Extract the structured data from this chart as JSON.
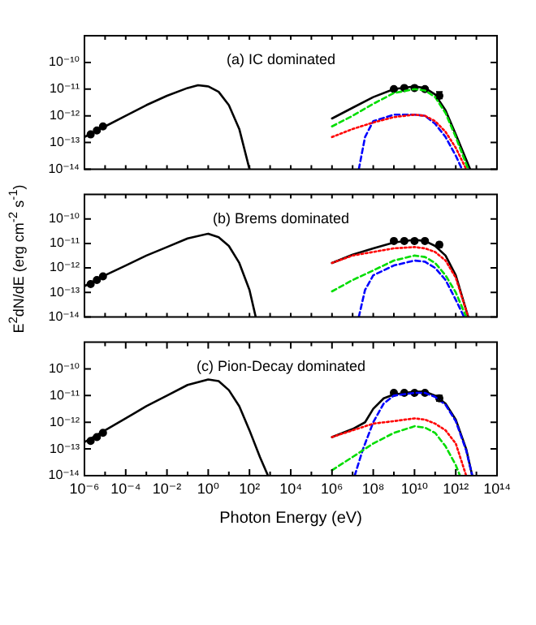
{
  "chart_data": [
    {
      "type": "line",
      "title": "(a) IC dominated",
      "log": "xy",
      "xlim": [
        1e-06,
        100000000000000.0
      ],
      "ylim": [
        1e-14,
        1e-09
      ],
      "tick_labels": "y",
      "xticks": [
        {
          "value": 1e-06,
          "label": null
        },
        {
          "value": 1e-05,
          "label": null
        },
        {
          "value": 0.0001,
          "label": null
        },
        {
          "value": 0.001,
          "label": null
        },
        {
          "value": 0.01,
          "label": null
        },
        {
          "value": 0.1,
          "label": null
        },
        {
          "value": 1,
          "label": null
        },
        {
          "value": 10,
          "label": null
        },
        {
          "value": 100,
          "label": null
        },
        {
          "value": 1000.0,
          "label": null
        },
        {
          "value": 10000.0,
          "label": null
        },
        {
          "value": 100000.0,
          "label": null
        },
        {
          "value": 1000000.0,
          "label": null
        },
        {
          "value": 10000000.0,
          "label": null
        },
        {
          "value": 100000000.0,
          "label": null
        },
        {
          "value": 1000000000.0,
          "label": null
        },
        {
          "value": 10000000000.0,
          "label": null
        },
        {
          "value": 100000000000.0,
          "label": null
        },
        {
          "value": 1000000000000.0,
          "label": null
        },
        {
          "value": 10000000000000.0,
          "label": null
        },
        {
          "value": 100000000000000.0,
          "label": null
        }
      ],
      "yticks": [
        {
          "value": 1e-14,
          "label": "10⁻¹⁴"
        },
        {
          "value": 1e-13,
          "label": "10⁻¹³"
        },
        {
          "value": 1e-12,
          "label": "10⁻¹²"
        },
        {
          "value": 1e-11,
          "label": "10⁻¹¹"
        },
        {
          "value": 1e-10,
          "label": "10⁻¹⁰"
        }
      ],
      "series": [
        {
          "type": "line",
          "color": "#000000",
          "x": [
            1e-06,
            1e-05,
            0.0001,
            0.001,
            0.01,
            0.1,
            0.32,
            1,
            3.2,
            10,
            32,
            100
          ],
          "values": [
            1.6e-13,
            4e-13,
            1e-12,
            2.5e-12,
            5.6e-12,
            1.1e-11,
            1.4e-11,
            1.26e-11,
            7.9e-12,
            2.5e-12,
            3.2e-13,
            1e-14
          ]
        },
        {
          "type": "line",
          "color": "#00dd00",
          "line_style": "dashed",
          "x": [
            1000000.0,
            10000000.0,
            100000000.0,
            1000000000.0,
            10000000000.0,
            32000000000.0,
            100000000000.0,
            320000000000.0,
            1000000000000.0,
            4000000000000.0
          ],
          "values": [
            4e-13,
            1e-12,
            2.8e-12,
            7.1e-12,
            1e-11,
            8.9e-12,
            5e-12,
            1.26e-12,
            1.6e-13,
            1e-14
          ]
        },
        {
          "type": "line",
          "color": "#ff0000",
          "line_style": "dotted",
          "x": [
            1000000.0,
            10000000.0,
            100000000.0,
            1000000000.0,
            10000000000.0,
            32000000000.0,
            100000000000.0,
            320000000000.0,
            1000000000000.0,
            3200000000000.0
          ],
          "values": [
            1.6e-13,
            3.2e-13,
            5.6e-13,
            8.9e-13,
            1.1e-12,
            1e-12,
            6.3e-13,
            2.5e-13,
            6.3e-14,
            1e-14
          ]
        },
        {
          "type": "line",
          "color": "#0000ff",
          "line_style": "dashed",
          "x": [
            20000000.0,
            40000000.0,
            100000000.0,
            1000000000.0,
            10000000000.0,
            32000000000.0,
            100000000000.0,
            320000000000.0,
            1000000000000.0,
            2000000000000.0
          ],
          "values": [
            1e-14,
            1.6e-13,
            6.3e-13,
            1.1e-12,
            1.1e-12,
            1e-12,
            5e-13,
            1.6e-13,
            3.2e-14,
            1e-14
          ]
        },
        {
          "type": "line",
          "color": "#000000",
          "x": [
            1000000.0,
            10000000.0,
            100000000.0,
            1000000000.0,
            10000000000.0,
            32000000000.0,
            100000000000.0,
            320000000000.0,
            1000000000000.0,
            5000000000000.0
          ],
          "values": [
            7.9e-13,
            2e-12,
            5e-12,
            1e-11,
            1.26e-11,
            1.1e-11,
            6.3e-12,
            1.6e-12,
            2e-13,
            1e-14
          ]
        },
        {
          "type": "scatter",
          "color": "#000000",
          "marker": "circle",
          "x": [
            2e-06,
            4e-06,
            7.9e-06,
            1000000000.0,
            3200000000.0,
            10000000000.0,
            32000000000.0,
            160000000000.0
          ],
          "values": [
            2e-13,
            2.8e-13,
            4e-13,
            1e-11,
            1.1e-11,
            1.1e-11,
            1e-11,
            5.6e-12
          ],
          "errors": [
            null,
            null,
            null,
            null,
            null,
            null,
            null,
            [
              4.5e-12,
              7.9e-12
            ]
          ]
        }
      ]
    },
    {
      "type": "line",
      "title": "(b) Brems dominated",
      "ylabel": "E$^{2}$dN/dE (erg cm$^{-2}$ s$^{-1}$)",
      "log": "xy",
      "xlim": [
        1e-06,
        100000000000000.0
      ],
      "ylim": [
        1e-14,
        1e-09
      ],
      "tick_labels": "y",
      "xticks": [
        {
          "value": 1e-06,
          "label": null
        },
        {
          "value": 1e-05,
          "label": null
        },
        {
          "value": 0.0001,
          "label": null
        },
        {
          "value": 0.001,
          "label": null
        },
        {
          "value": 0.01,
          "label": null
        },
        {
          "value": 0.1,
          "label": null
        },
        {
          "value": 1,
          "label": null
        },
        {
          "value": 10,
          "label": null
        },
        {
          "value": 100,
          "label": null
        },
        {
          "value": 1000.0,
          "label": null
        },
        {
          "value": 10000.0,
          "label": null
        },
        {
          "value": 100000.0,
          "label": null
        },
        {
          "value": 1000000.0,
          "label": null
        },
        {
          "value": 10000000.0,
          "label": null
        },
        {
          "value": 100000000.0,
          "label": null
        },
        {
          "value": 1000000000.0,
          "label": null
        },
        {
          "value": 10000000000.0,
          "label": null
        },
        {
          "value": 100000000000.0,
          "label": null
        },
        {
          "value": 1000000000000.0,
          "label": null
        },
        {
          "value": 10000000000000.0,
          "label": null
        },
        {
          "value": 100000000000000.0,
          "label": null
        }
      ],
      "yticks": [
        {
          "value": 1e-14,
          "label": "10⁻¹⁴"
        },
        {
          "value": 1e-13,
          "label": "10⁻¹³"
        },
        {
          "value": 1e-12,
          "label": "10⁻¹²"
        },
        {
          "value": 1e-11,
          "label": "10⁻¹¹"
        },
        {
          "value": 1e-10,
          "label": "10⁻¹⁰"
        }
      ],
      "series": [
        {
          "type": "line",
          "color": "#000000",
          "x": [
            1e-06,
            1e-05,
            0.0001,
            0.001,
            0.01,
            0.1,
            1,
            3.2,
            10,
            32,
            100,
            200
          ],
          "values": [
            1.8e-13,
            5e-13,
            1.26e-12,
            3.2e-12,
            7.1e-12,
            1.6e-11,
            2.5e-11,
            1.8e-11,
            7.9e-12,
            1.6e-12,
            1.26e-13,
            1e-14
          ]
        },
        {
          "type": "line",
          "color": "#ff0000",
          "line_style": "dotted",
          "x": [
            1000000.0,
            10000000.0,
            100000000.0,
            1000000000.0,
            10000000000.0,
            32000000000.0,
            100000000000.0,
            320000000000.0,
            1000000000000.0,
            4000000000000.0
          ],
          "values": [
            1.6e-12,
            3.2e-12,
            4.5e-12,
            6.3e-12,
            7.1e-12,
            6.3e-12,
            4.5e-12,
            2e-12,
            4e-13,
            1e-14
          ]
        },
        {
          "type": "line",
          "color": "#00dd00",
          "line_style": "dashed",
          "x": [
            1000000.0,
            10000000.0,
            100000000.0,
            1000000000.0,
            10000000000.0,
            32000000000.0,
            100000000000.0,
            320000000000.0,
            1000000000000.0,
            3200000000000.0
          ],
          "values": [
            1.1e-13,
            3.2e-13,
            7.9e-13,
            2e-12,
            3.2e-12,
            2.8e-12,
            1.6e-12,
            5e-13,
            1e-13,
            1e-14
          ]
        },
        {
          "type": "line",
          "color": "#0000ff",
          "line_style": "dashed",
          "x": [
            20000000.0,
            40000000.0,
            100000000.0,
            1000000000.0,
            10000000000.0,
            32000000000.0,
            100000000000.0,
            320000000000.0,
            1000000000000.0,
            2500000000000.0
          ],
          "values": [
            1e-14,
            1.26e-13,
            5e-13,
            1.26e-12,
            2e-12,
            1.8e-12,
            1e-12,
            3.2e-13,
            5e-14,
            1e-14
          ]
        },
        {
          "type": "line",
          "color": "#000000",
          "x": [
            1000000.0,
            10000000.0,
            100000000.0,
            1000000000.0,
            10000000000.0,
            32000000000.0,
            100000000000.0,
            320000000000.0,
            1000000000000.0,
            4000000000000.0
          ],
          "values": [
            1.6e-12,
            3.5e-12,
            6.3e-12,
            1.1e-11,
            1.4e-11,
            1.26e-11,
            7.9e-12,
            3.2e-12,
            5e-13,
            1e-14
          ]
        },
        {
          "type": "scatter",
          "color": "#000000",
          "marker": "circle",
          "x": [
            2e-06,
            4e-06,
            7.9e-06,
            1000000000.0,
            3200000000.0,
            10000000000.0,
            32000000000.0,
            160000000000.0
          ],
          "values": [
            2.2e-13,
            3.2e-13,
            4.5e-13,
            1.26e-11,
            1.26e-11,
            1.26e-11,
            1.26e-11,
            8.9e-12
          ],
          "errors": [
            null,
            null,
            null,
            null,
            null,
            null,
            null,
            [
              7.1e-12,
              1.1e-11
            ]
          ]
        }
      ]
    },
    {
      "type": "line",
      "title": "(c) Pion-Decay dominated",
      "xlabel": "Photon Energy (eV)",
      "log": "xy",
      "xlim": [
        1e-06,
        100000000000000.0
      ],
      "ylim": [
        1e-14,
        1e-09
      ],
      "xticks": [
        {
          "value": 1e-06,
          "label": "10⁻⁶"
        },
        {
          "value": 1e-05,
          "label": null
        },
        {
          "value": 0.0001,
          "label": "10⁻⁴"
        },
        {
          "value": 0.001,
          "label": null
        },
        {
          "value": 0.01,
          "label": "10⁻²"
        },
        {
          "value": 0.1,
          "label": null
        },
        {
          "value": 1,
          "label": "10⁰"
        },
        {
          "value": 10,
          "label": null
        },
        {
          "value": 100,
          "label": "10²"
        },
        {
          "value": 1000.0,
          "label": null
        },
        {
          "value": 10000.0,
          "label": "10⁴"
        },
        {
          "value": 100000.0,
          "label": null
        },
        {
          "value": 1000000.0,
          "label": "10⁶"
        },
        {
          "value": 10000000.0,
          "label": null
        },
        {
          "value": 100000000.0,
          "label": "10⁸"
        },
        {
          "value": 1000000000.0,
          "label": null
        },
        {
          "value": 10000000000.0,
          "label": "10¹⁰"
        },
        {
          "value": 100000000000.0,
          "label": null
        },
        {
          "value": 1000000000000.0,
          "label": "10¹²"
        },
        {
          "value": 10000000000000.0,
          "label": null
        },
        {
          "value": 100000000000000.0,
          "label": "10¹⁴"
        }
      ],
      "yticks": [
        {
          "value": 1e-14,
          "label": "10⁻¹⁴"
        },
        {
          "value": 1e-13,
          "label": "10⁻¹³"
        },
        {
          "value": 1e-12,
          "label": "10⁻¹²"
        },
        {
          "value": 1e-11,
          "label": "10⁻¹¹"
        },
        {
          "value": 1e-10,
          "label": "10⁻¹⁰"
        }
      ],
      "series": [
        {
          "type": "line",
          "color": "#000000",
          "x": [
            1e-06,
            1e-05,
            0.0001,
            0.001,
            0.01,
            0.1,
            1,
            3.2,
            10,
            32,
            100,
            320,
            790
          ],
          "values": [
            1.8e-13,
            5e-13,
            1.4e-12,
            4e-12,
            1e-11,
            2.5e-11,
            4e-11,
            3.5e-11,
            1.6e-11,
            4e-12,
            5e-13,
            5e-14,
            1e-14
          ]
        },
        {
          "type": "line",
          "color": "#ff0000",
          "line_style": "dotted",
          "x": [
            1000000.0,
            10000000.0,
            100000000.0,
            1000000000.0,
            10000000000.0,
            32000000000.0,
            100000000000.0,
            320000000000.0,
            1000000000000.0,
            3200000000000.0
          ],
          "values": [
            2.8e-13,
            5e-13,
            8.9e-13,
            1.1e-12,
            1.4e-12,
            1.26e-12,
            8.9e-13,
            5e-13,
            1.6e-13,
            1e-14
          ]
        },
        {
          "type": "line",
          "color": "#00dd00",
          "line_style": "dashed",
          "x": [
            1000000.0,
            10000000.0,
            100000000.0,
            1000000000.0,
            10000000000.0,
            32000000000.0,
            100000000000.0,
            320000000000.0,
            1000000000000.0,
            1600000000000.0
          ],
          "values": [
            1.6e-14,
            5e-14,
            1.6e-13,
            4e-13,
            7.1e-13,
            6.3e-13,
            4e-13,
            1.26e-13,
            2.5e-14,
            1e-14
          ]
        },
        {
          "type": "line",
          "color": "#0000ff",
          "line_style": "dashed",
          "x": [
            12600000.0,
            32000000.0,
            100000000.0,
            320000000.0,
            1000000000.0,
            10000000000.0,
            32000000000.0,
            100000000000.0,
            320000000000.0,
            1000000000000.0,
            3200000000000.0,
            6300000000000.0
          ],
          "values": [
            1e-14,
            1e-13,
            1e-12,
            5e-12,
            1e-11,
            1.26e-11,
            1.26e-11,
            8.9e-12,
            4.5e-12,
            1.1e-12,
            8.9e-14,
            1e-14
          ]
        },
        {
          "type": "line",
          "color": "#000000",
          "x": [
            1000000.0,
            10000000.0,
            40000000.0,
            100000000.0,
            320000000.0,
            1000000000.0,
            10000000000.0,
            32000000000.0,
            100000000000.0,
            320000000000.0,
            1000000000000.0,
            3200000000000.0,
            6300000000000.0
          ],
          "values": [
            2.8e-13,
            5.6e-13,
            1e-12,
            3.2e-12,
            7.9e-12,
            1.1e-11,
            1.4e-11,
            1.4e-11,
            1e-11,
            5e-12,
            1.26e-12,
            1e-13,
            1e-14
          ]
        },
        {
          "type": "scatter",
          "color": "#000000",
          "marker": "circle",
          "x": [
            2e-06,
            4e-06,
            7.9e-06,
            1000000000.0,
            3200000000.0,
            10000000000.0,
            32000000000.0,
            160000000000.0
          ],
          "values": [
            2e-13,
            2.8e-13,
            4e-13,
            1.26e-11,
            1.26e-11,
            1.26e-11,
            1.26e-11,
            7.9e-12
          ],
          "errors": [
            null,
            null,
            null,
            null,
            null,
            null,
            null,
            [
              6.3e-12,
              1e-11
            ]
          ]
        }
      ]
    }
  ]
}
